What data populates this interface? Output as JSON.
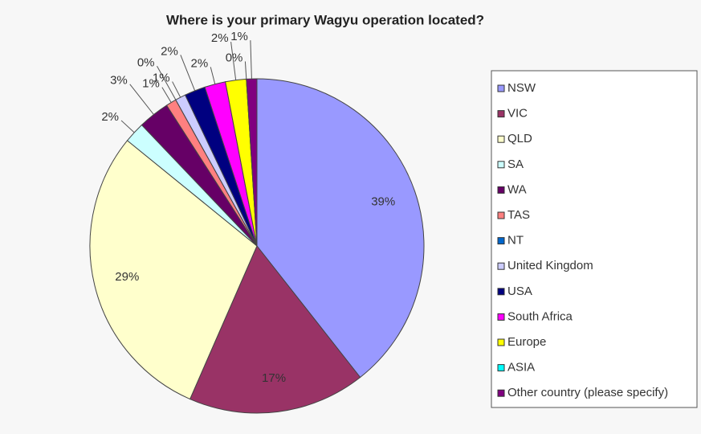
{
  "chart_data": {
    "type": "pie",
    "title": "Where is your primary Wagyu operation located?",
    "categories": [
      "NSW",
      "VIC",
      "QLD",
      "SA",
      "WA",
      "TAS",
      "NT",
      "United Kingdom",
      "USA",
      "South Africa",
      "Europe",
      "ASIA",
      "Other country (please specify)"
    ],
    "values": [
      39,
      17,
      29,
      2,
      3,
      1,
      0,
      1,
      2,
      2,
      2,
      0,
      1
    ],
    "value_labels": [
      "39%",
      "17%",
      "29%",
      "2%",
      "3%",
      "1%",
      "0%",
      "1%",
      "2%",
      "2%",
      "2%",
      "0%",
      "1%"
    ],
    "colors": [
      "#9999ff",
      "#993366",
      "#ffffcc",
      "#ccffff",
      "#660066",
      "#ff8080",
      "#0066cc",
      "#ccccff",
      "#000080",
      "#ff00ff",
      "#ffff00",
      "#00ffff",
      "#800080"
    ],
    "legend": "right"
  }
}
